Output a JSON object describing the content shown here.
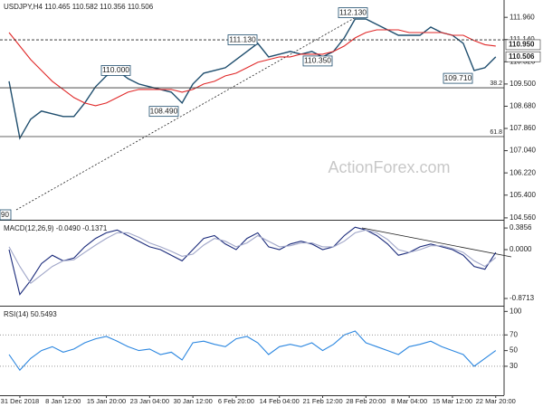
{
  "chart_data": [
    {
      "type": "line",
      "title": "USDJPY,H4  110.465 110.582 110.356 110.506",
      "series": [
        {
          "color": "#1f4e6e",
          "values": [
            109.6,
            107.5,
            108.2,
            108.5,
            108.4,
            108.3,
            108.3,
            108.8,
            109.4,
            109.8,
            110.0,
            109.7,
            109.5,
            109.4,
            109.3,
            109.2,
            108.8,
            109.5,
            109.9,
            110.0,
            110.1,
            110.4,
            110.7,
            111.0,
            110.5,
            110.6,
            110.7,
            110.6,
            110.7,
            110.5,
            110.7,
            111.2,
            111.9,
            111.9,
            111.7,
            111.5,
            111.3,
            111.3,
            111.3,
            111.6,
            111.4,
            111.3,
            111.0,
            110.0,
            110.1,
            110.5
          ]
        },
        {
          "color": "#e02828",
          "values": [
            111.4,
            110.9,
            110.4,
            110.0,
            109.6,
            109.3,
            109.0,
            108.8,
            108.7,
            108.8,
            109.0,
            109.2,
            109.3,
            109.3,
            109.3,
            109.3,
            109.2,
            109.3,
            109.5,
            109.6,
            109.8,
            109.9,
            110.1,
            110.3,
            110.4,
            110.5,
            110.5,
            110.6,
            110.6,
            110.6,
            110.7,
            110.9,
            111.2,
            111.4,
            111.5,
            111.5,
            111.5,
            111.4,
            111.4,
            111.4,
            111.4,
            111.3,
            111.3,
            111.1,
            110.95,
            110.9
          ]
        }
      ],
      "ylim": [
        104.49,
        112.6
      ],
      "yticks": [
        {
          "value": 111.96,
          "label": "111.960"
        },
        {
          "value": 111.14,
          "label": "111.140"
        },
        {
          "value": 110.32,
          "label": "110.320"
        },
        {
          "value": 109.5,
          "label": "109.500"
        },
        {
          "value": 108.68,
          "label": "108.680"
        },
        {
          "value": 107.86,
          "label": "107.860"
        },
        {
          "value": 107.04,
          "label": "107.040"
        },
        {
          "value": 106.22,
          "label": "106.220"
        },
        {
          "value": 105.4,
          "label": "105.400"
        },
        {
          "value": 104.56,
          "label": "104.560"
        }
      ],
      "annotations": [
        {
          "value": 112.13,
          "label": "112.130"
        },
        {
          "value": 111.13,
          "label": "111.130"
        },
        {
          "value": 110.0,
          "label": "110.000"
        },
        {
          "value": 110.35,
          "label": "110.350"
        },
        {
          "value": 108.49,
          "label": "108.490"
        },
        {
          "value": 109.71,
          "label": "109.710"
        }
      ],
      "fib_levels": [
        {
          "price": 109.36,
          "ratio": 38.2
        },
        {
          "price": 107.56,
          "ratio": 61.8
        }
      ],
      "resistance": 111.13,
      "ma_last": {
        "value": 110.95,
        "label": "110.950"
      },
      "last_price": {
        "value": 110.506,
        "label": "110.506"
      },
      "corner_label": "90",
      "watermark": "ActionForex.com"
    },
    {
      "type": "line",
      "title": "MACD(12,26,9) -0.0490 -0.1371",
      "series": [
        {
          "color": "#1a2a7a",
          "values": [
            0.0,
            -0.8,
            -0.55,
            -0.25,
            -0.1,
            -0.2,
            -0.15,
            0.05,
            0.2,
            0.3,
            0.35,
            0.25,
            0.15,
            0.05,
            0.0,
            -0.1,
            -0.2,
            0.0,
            0.2,
            0.25,
            0.1,
            0.0,
            0.2,
            0.3,
            0.05,
            0.0,
            0.1,
            0.15,
            0.1,
            0.0,
            0.05,
            0.25,
            0.4,
            0.35,
            0.25,
            0.1,
            -0.1,
            -0.05,
            0.05,
            0.1,
            0.05,
            0.0,
            -0.1,
            -0.3,
            -0.35,
            -0.05
          ]
        },
        {
          "color": "#a0a6c8",
          "values": [
            0.05,
            -0.3,
            -0.6,
            -0.45,
            -0.3,
            -0.2,
            -0.18,
            -0.05,
            0.08,
            0.2,
            0.3,
            0.3,
            0.22,
            0.12,
            0.05,
            -0.03,
            -0.12,
            -0.08,
            0.08,
            0.2,
            0.15,
            0.05,
            0.12,
            0.25,
            0.15,
            0.05,
            0.07,
            0.12,
            0.12,
            0.05,
            0.05,
            0.15,
            0.3,
            0.35,
            0.3,
            0.18,
            0.0,
            -0.05,
            0.0,
            0.07,
            0.07,
            0.02,
            -0.05,
            -0.2,
            -0.3,
            -0.14
          ]
        }
      ],
      "ylim": [
        -1.0,
        0.5
      ],
      "yticks": [
        {
          "value": 0.3856,
          "label": "0.3856"
        },
        {
          "value": 0,
          "label": "0.0000"
        },
        {
          "value": -0.8713,
          "label": "-0.8713"
        }
      ]
    },
    {
      "type": "line",
      "title": "RSI(14) 50.5493",
      "categories": [
        null,
        "31 Dec 2018",
        null,
        null,
        null,
        "8 Jan 12:00",
        null,
        null,
        null,
        "15 Jan 20:00",
        null,
        null,
        null,
        "23 Jan 04:00",
        null,
        null,
        null,
        "30 Jan 12:00",
        null,
        null,
        null,
        "6 Feb 20:00",
        null,
        null,
        null,
        "14 Feb 04:00",
        null,
        null,
        null,
        "21 Feb 12:00",
        null,
        null,
        null,
        "28 Feb 20:00",
        null,
        null,
        null,
        "8 Mar 04:00",
        null,
        null,
        null,
        "15 Mar 12:00",
        null,
        null,
        null,
        "22 Mar 20:00"
      ],
      "series": [
        {
          "color": "#2a86e0",
          "values": [
            45,
            25,
            40,
            50,
            55,
            48,
            52,
            60,
            65,
            68,
            62,
            55,
            50,
            52,
            45,
            48,
            38,
            60,
            62,
            58,
            55,
            65,
            68,
            60,
            45,
            55,
            58,
            55,
            60,
            50,
            58,
            70,
            75,
            60,
            55,
            50,
            45,
            55,
            58,
            62,
            55,
            50,
            45,
            30,
            40,
            50
          ]
        }
      ],
      "ylim": [
        -7,
        105
      ],
      "yticks": [
        100,
        70,
        50,
        30
      ],
      "levels": [
        70,
        30
      ]
    }
  ]
}
